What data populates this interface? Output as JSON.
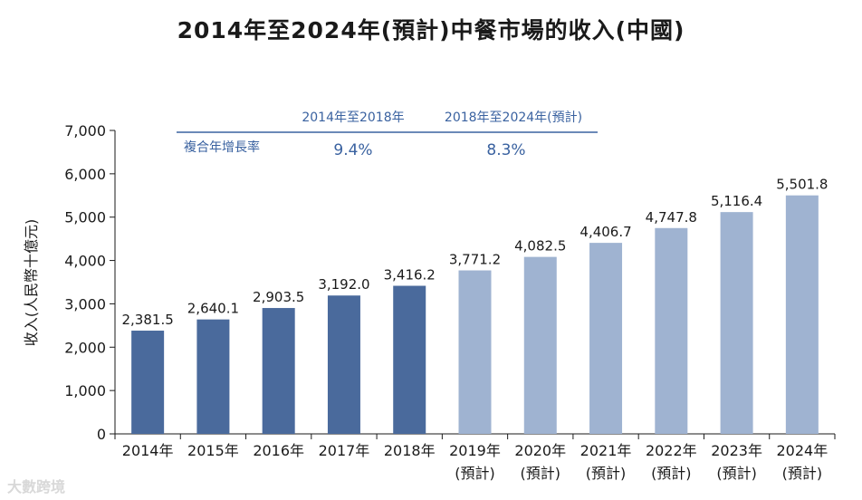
{
  "chart_data": {
    "type": "bar",
    "title": "2014年至2024年(預計)中餐市場的收入(中國)",
    "ylabel": "收入(人民幣十億元)",
    "xlabel": "",
    "ylim": [
      0,
      7000
    ],
    "yticks": [
      "0",
      "1,000",
      "2,000",
      "3,000",
      "4,000",
      "5,000",
      "6,000",
      "7,000"
    ],
    "categories": [
      "2014年",
      "2015年",
      "2016年",
      "2017年",
      "2018年",
      "2019年",
      "2020年",
      "2021年",
      "2022年",
      "2023年",
      "2024年"
    ],
    "category_notes": [
      "",
      "",
      "",
      "",
      "",
      "(預計)",
      "(預計)",
      "(預計)",
      "(預計)",
      "(預計)",
      "(預計)"
    ],
    "values": [
      2381.5,
      2640.1,
      2903.5,
      3192.0,
      3416.2,
      3771.2,
      4082.5,
      4406.7,
      4747.8,
      5116.4,
      5501.8
    ],
    "value_labels": [
      "2,381.5",
      "2,640.1",
      "2,903.5",
      "3,192.0",
      "3,416.2",
      "3,771.2",
      "4,082.5",
      "4,406.7",
      "4,747.8",
      "5,116.4",
      "5,501.8"
    ],
    "colors": {
      "actual": "#4a6a9c",
      "forecast": "#9fb3d1",
      "axis": "#1a1a1a",
      "cagr": "#3a62a0"
    },
    "cagr": {
      "row_label": "複合年增長率",
      "periods": [
        "2014年至2018年",
        "2018年至2024年(預計)"
      ],
      "values": [
        "9.4%",
        "8.3%"
      ]
    }
  },
  "watermark": "大數跨境"
}
